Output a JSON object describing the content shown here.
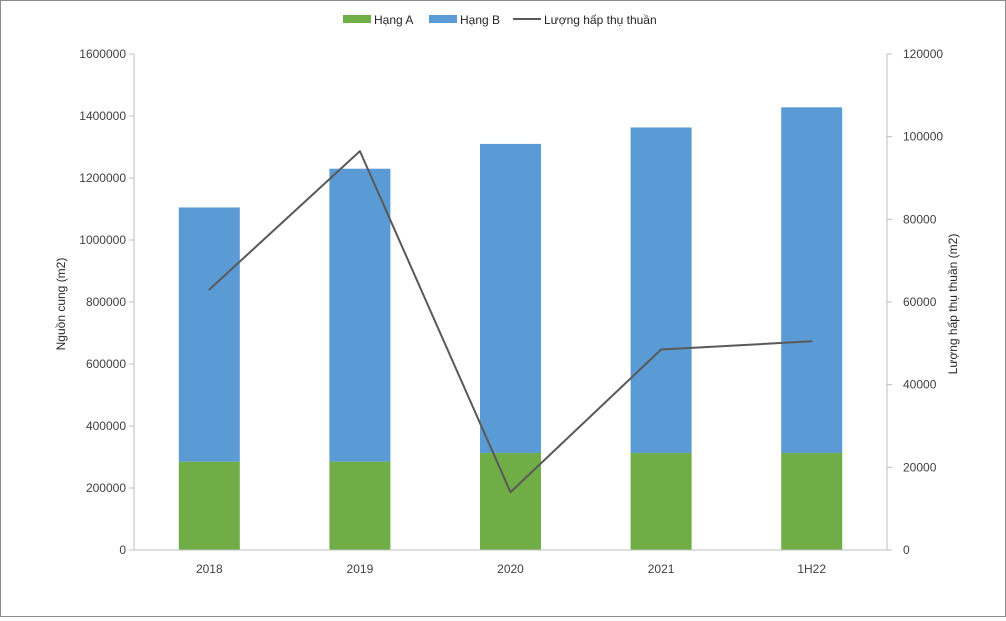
{
  "chart_data": {
    "type": "bar",
    "categories": [
      "2018",
      "2019",
      "2020",
      "2021",
      "1H22"
    ],
    "series": [
      {
        "name": "Hạng A",
        "kind": "stacked-bar",
        "axis": "left",
        "color": "#70ad47",
        "values": [
          285000,
          285000,
          313000,
          313000,
          313000
        ]
      },
      {
        "name": "Hạng B",
        "kind": "stacked-bar",
        "axis": "left",
        "color": "#5b9bd5",
        "values": [
          820000,
          945000,
          997000,
          1050000,
          1115000
        ]
      },
      {
        "name": "Lượng hấp thụ thuần",
        "kind": "line",
        "axis": "right",
        "color": "#595959",
        "values": [
          63000,
          96500,
          14000,
          48500,
          50500
        ]
      }
    ],
    "ylabel": "Nguồn cung (m2)",
    "y2label": "Lượng hấp thụ thuần (m2)",
    "ylim": [
      0,
      1600000
    ],
    "y2lim": [
      0,
      120000
    ],
    "yticks": [
      "0",
      "200000",
      "400000",
      "600000",
      "800000",
      "1000000",
      "1200000",
      "1400000",
      "1600000"
    ],
    "y2ticks": [
      "0",
      "20000",
      "40000",
      "60000",
      "80000",
      "100000",
      "120000"
    ],
    "grid": false,
    "legend": "top-center"
  }
}
